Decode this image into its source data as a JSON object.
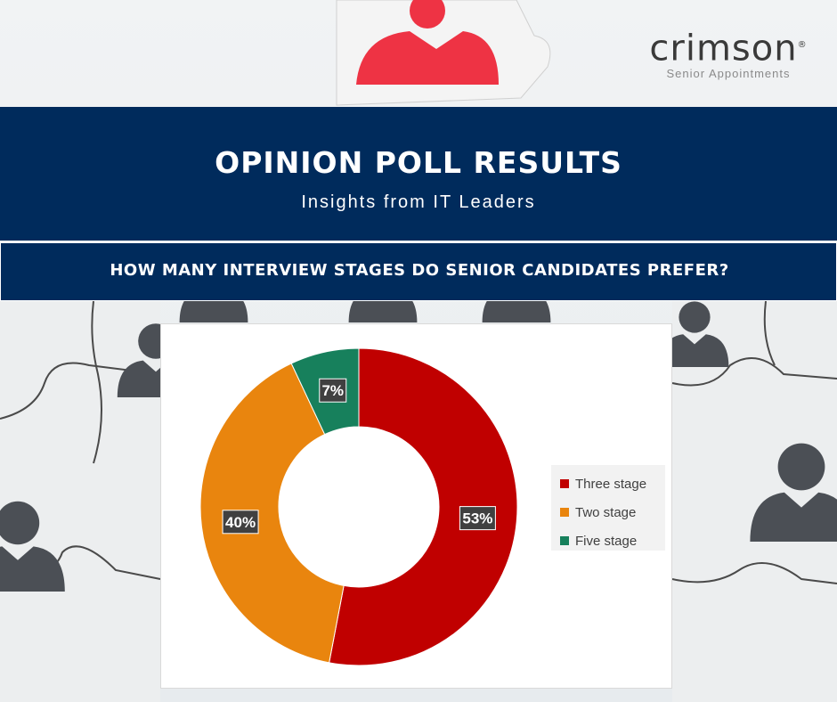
{
  "brand": {
    "name": "crimson",
    "registered_mark": "®",
    "tagline": "Senior Appointments"
  },
  "header": {
    "title": "OPINION POLL RESULTS",
    "subtitle": "Insights from IT Leaders"
  },
  "question": "HOW MANY INTERVIEW STAGES DO SENIOR CANDIDATES PREFER?",
  "colors": {
    "navy": "#002b5c",
    "puzzle_red": "#ee3344",
    "label_box": "#404040"
  },
  "chart_data": {
    "type": "pie",
    "variant": "donut",
    "categories": [
      "Three stage",
      "Two stage",
      "Five stage"
    ],
    "values": [
      53,
      40,
      7
    ],
    "data_labels": [
      "53%",
      "40%",
      "7%"
    ],
    "colors": [
      "#c00000",
      "#e9850e",
      "#17805c"
    ],
    "legend_position": "right"
  }
}
